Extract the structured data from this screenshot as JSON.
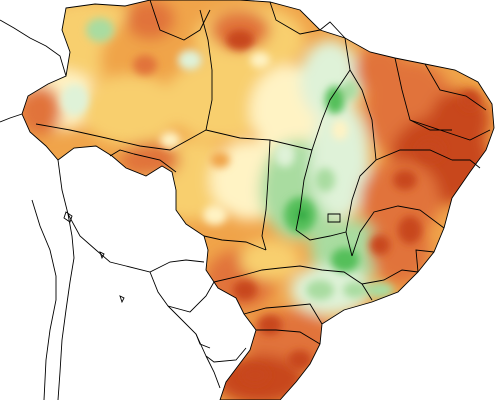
{
  "map": {
    "region": "Brazil",
    "type": "choropleth-anomaly",
    "legend_visible": false,
    "labels_visible": false,
    "colors": {
      "background": "#ffffff",
      "border": "#000000",
      "strong_deficit": "#c8461e",
      "deficit": "#e1733a",
      "moderate_deficit": "#f0a44a",
      "slight_deficit": "#f8cf6e",
      "near_normal": "#fff3c4",
      "slight_surplus": "#dff2d8",
      "surplus": "#a9dca0",
      "strong_surplus": "#55bf5a",
      "peak_surplus": "#1fa13a"
    },
    "palette_order": [
      "strong_deficit",
      "deficit",
      "moderate_deficit",
      "slight_deficit",
      "near_normal",
      "slight_surplus",
      "surplus",
      "strong_surplus",
      "peak_surplus"
    ]
  }
}
